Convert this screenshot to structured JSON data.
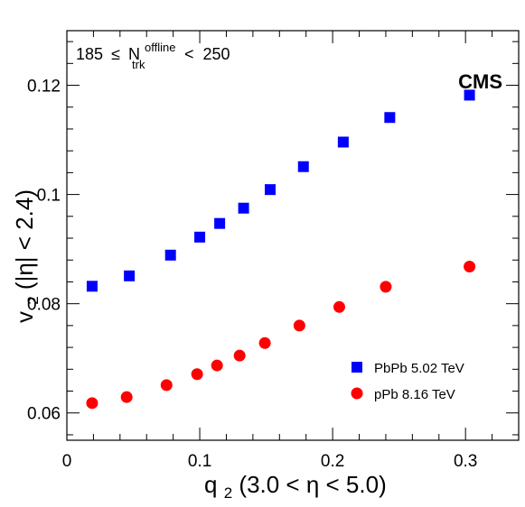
{
  "chart_data": {
    "type": "scatter",
    "experiment_label": "CMS",
    "selection": {
      "lhs": "185",
      "rel": "≤",
      "var": "N",
      "var_sup": "offline",
      "var_sub": "trk",
      "rel2": "<",
      "rhs": "250"
    },
    "xlabel": {
      "main": "q",
      "sub": "2",
      "rest": " (3.0 < η < 5.0)"
    },
    "ylabel": {
      "main": "v",
      "sub": "2",
      "rest": "(|η| < 2.4)"
    },
    "xlim": [
      0,
      0.34
    ],
    "ylim": [
      0.055,
      0.13
    ],
    "x_ticks": [
      {
        "value": 0,
        "label": "0"
      },
      {
        "value": 0.1,
        "label": "0.1"
      },
      {
        "value": 0.2,
        "label": "0.2"
      },
      {
        "value": 0.3,
        "label": "0.3"
      }
    ],
    "y_ticks": [
      {
        "value": 0.06,
        "label": "0.06"
      },
      {
        "value": 0.08,
        "label": "0.08"
      },
      {
        "value": 0.1,
        "label": "0.1"
      },
      {
        "value": 0.12,
        "label": "0.12"
      }
    ],
    "legend_position": "bottom-right",
    "series": [
      {
        "name": "PbPb 5.02 TeV",
        "marker": "square",
        "color": "#0000ff",
        "x": [
          0.019,
          0.047,
          0.078,
          0.1,
          0.115,
          0.133,
          0.153,
          0.178,
          0.208,
          0.243,
          0.303
        ],
        "y": [
          0.0832,
          0.0851,
          0.0889,
          0.0922,
          0.0947,
          0.0975,
          0.1009,
          0.1051,
          0.1096,
          0.1141,
          0.1182
        ]
      },
      {
        "name": "pPb 8.16 TeV",
        "marker": "circle",
        "color": "#ff0000",
        "x": [
          0.019,
          0.045,
          0.075,
          0.098,
          0.113,
          0.13,
          0.149,
          0.175,
          0.205,
          0.24,
          0.303
        ],
        "y": [
          0.0618,
          0.0629,
          0.0651,
          0.0671,
          0.0687,
          0.0705,
          0.0728,
          0.076,
          0.0794,
          0.0831,
          0.0868
        ]
      }
    ]
  }
}
